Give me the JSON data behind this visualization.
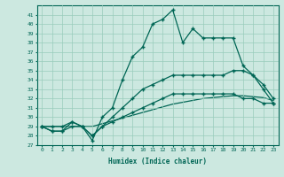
{
  "xlabel": "Humidex (Indice chaleur)",
  "x": [
    0,
    1,
    2,
    3,
    4,
    5,
    6,
    7,
    8,
    9,
    10,
    11,
    12,
    13,
    14,
    15,
    16,
    17,
    18,
    19,
    20,
    21,
    22,
    23
  ],
  "line1": [
    29,
    29,
    29,
    29.5,
    29,
    27.5,
    30,
    31,
    34,
    36.5,
    37.5,
    40,
    40.5,
    41.5,
    38,
    39.5,
    38.5,
    38.5,
    38.5,
    38.5,
    35.5,
    34.5,
    33,
    31.5
  ],
  "line2": [
    29,
    28.5,
    28.5,
    29.5,
    29,
    28,
    29,
    30,
    31,
    32,
    33,
    33.5,
    34,
    34.5,
    34.5,
    34.5,
    34.5,
    34.5,
    34.5,
    35,
    35,
    34.5,
    33.5,
    32
  ],
  "line3": [
    29,
    28.5,
    28.5,
    29,
    29,
    28,
    29,
    29.5,
    30,
    30.5,
    31,
    31.5,
    32,
    32.5,
    32.5,
    32.5,
    32.5,
    32.5,
    32.5,
    32.5,
    32,
    32,
    31.5,
    31.5
  ],
  "line4": [
    29,
    29,
    29,
    29,
    29,
    29,
    29.3,
    29.6,
    29.9,
    30.2,
    30.5,
    30.8,
    31.1,
    31.4,
    31.6,
    31.8,
    32.0,
    32.1,
    32.2,
    32.3,
    32.3,
    32.2,
    32.1,
    31.8
  ],
  "ylim": [
    27,
    42
  ],
  "yticks": [
    27,
    28,
    29,
    30,
    31,
    32,
    33,
    34,
    35,
    36,
    37,
    38,
    39,
    40,
    41
  ],
  "xticks": [
    0,
    1,
    2,
    3,
    4,
    5,
    6,
    7,
    8,
    9,
    10,
    11,
    12,
    13,
    14,
    15,
    16,
    17,
    18,
    19,
    20,
    21,
    22,
    23
  ],
  "bg_color": "#cce8e0",
  "grid_color": "#99ccbb",
  "line_color": "#006655",
  "marker": "+"
}
